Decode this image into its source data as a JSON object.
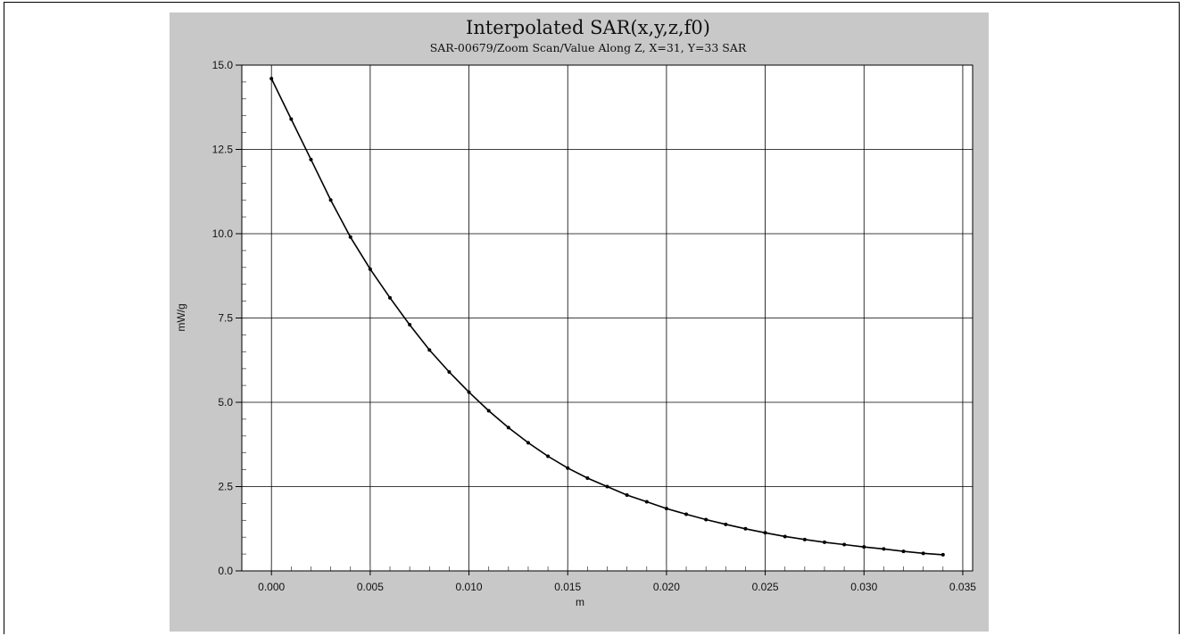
{
  "chart_data": {
    "type": "line",
    "title": "Interpolated SAR(x,y,z,f0)",
    "subtitle": "SAR-00679/Zoom Scan/Value Along Z, X=31, Y=33 SAR",
    "xlabel": "m",
    "ylabel": "mW/g",
    "xlim": [
      -0.0015,
      0.0355
    ],
    "ylim": [
      0,
      15
    ],
    "x_ticks": [
      "0.000",
      "0.005",
      "0.010",
      "0.015",
      "0.020",
      "0.025",
      "0.030",
      "0.035"
    ],
    "y_ticks": [
      "0.0",
      "2.5",
      "5.0",
      "7.5",
      "10.0",
      "12.5",
      "15.0"
    ],
    "grid": true,
    "series": [
      {
        "x": [
          0.0,
          0.001,
          0.002,
          0.003,
          0.004,
          0.005,
          0.006,
          0.007,
          0.008,
          0.009,
          0.01,
          0.011,
          0.012,
          0.013,
          0.014,
          0.015,
          0.016,
          0.017,
          0.018,
          0.019,
          0.02,
          0.021,
          0.022,
          0.023,
          0.024,
          0.025,
          0.026,
          0.027,
          0.028,
          0.029,
          0.03,
          0.031,
          0.032,
          0.033,
          0.034
        ],
        "values": [
          14.6,
          13.4,
          12.2,
          11.0,
          9.9,
          8.95,
          8.1,
          7.3,
          6.55,
          5.9,
          5.3,
          4.75,
          4.25,
          3.8,
          3.4,
          3.05,
          2.75,
          2.5,
          2.25,
          2.05,
          1.85,
          1.68,
          1.52,
          1.38,
          1.25,
          1.13,
          1.02,
          0.93,
          0.85,
          0.78,
          0.71,
          0.65,
          0.58,
          0.52,
          0.48
        ]
      }
    ],
    "colors": {
      "background": "#c8c8c8",
      "plot_area": "#ffffff",
      "line": "#000000",
      "grid": "#000000"
    }
  }
}
